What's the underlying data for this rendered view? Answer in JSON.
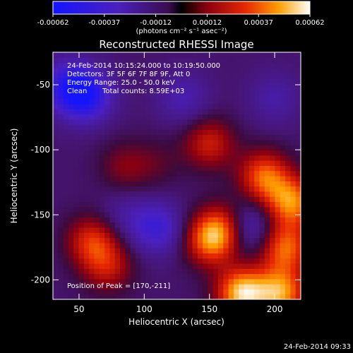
{
  "chart_data": {
    "type": "heatmap",
    "title": "Reconstructed RHESSI Image",
    "xlabel": "Heliocentric X (arcsec)",
    "ylabel": "Heliocentric Y (arcsec)",
    "xlim": [
      30,
      220
    ],
    "ylim": [
      -215,
      -25
    ],
    "xticks": [
      50,
      100,
      150,
      200
    ],
    "yticks": [
      -50,
      -100,
      -150,
      -200
    ],
    "colorbar": {
      "ticks": [
        "-0.00062",
        "-0.00037",
        "-0.00012",
        "0.00012",
        "0.00037",
        "0.00062"
      ],
      "range": [
        -0.00062,
        0.00062
      ],
      "unit_label": "(photons cm⁻² s⁻¹ asec⁻²)"
    },
    "annotations": {
      "time": "24-Feb-2014 10:15:24.000 to 10:19:50.000",
      "detectors": "Detectors: 3F 5F 6F 7F 8F 9F, Att 0",
      "energy": "Energy Range: 25.0 - 50.0 keV",
      "clean": "Clean",
      "total_counts": "Total counts: 8.59E+03",
      "peak": "Position of Peak = [170,-211]"
    },
    "sources": [
      {
        "x": 150,
        "y": -95,
        "value": 0.00032
      },
      {
        "x": 192,
        "y": -120,
        "value": 0.00045
      },
      {
        "x": 213,
        "y": -140,
        "value": 0.0005
      },
      {
        "x": 208,
        "y": -175,
        "value": 0.00046
      },
      {
        "x": 150,
        "y": -170,
        "value": 0.0004
      },
      {
        "x": 160,
        "y": -160,
        "value": 0.00036
      },
      {
        "x": 60,
        "y": -170,
        "value": 0.00036
      },
      {
        "x": 72,
        "y": -190,
        "value": 0.00028
      },
      {
        "x": 85,
        "y": -113,
        "value": 0.00018
      },
      {
        "x": 110,
        "y": -110,
        "value": 0.0001
      },
      {
        "x": 175,
        "y": -210,
        "value": 0.00062
      },
      {
        "x": 205,
        "y": -210,
        "value": 0.00052
      },
      {
        "x": 40,
        "y": -50,
        "value": -0.0003
      },
      {
        "x": 55,
        "y": -58,
        "value": -0.00045
      },
      {
        "x": 110,
        "y": -160,
        "value": -0.0003
      },
      {
        "x": 180,
        "y": -160,
        "value": -0.00028
      },
      {
        "x": 200,
        "y": -60,
        "value": -0.00015
      },
      {
        "x": 130,
        "y": -60,
        "value": -0.00018
      },
      {
        "x": 85,
        "y": -150,
        "value": -0.00012
      }
    ]
  },
  "footer": {
    "date": "24-Feb-2014 09:33"
  }
}
